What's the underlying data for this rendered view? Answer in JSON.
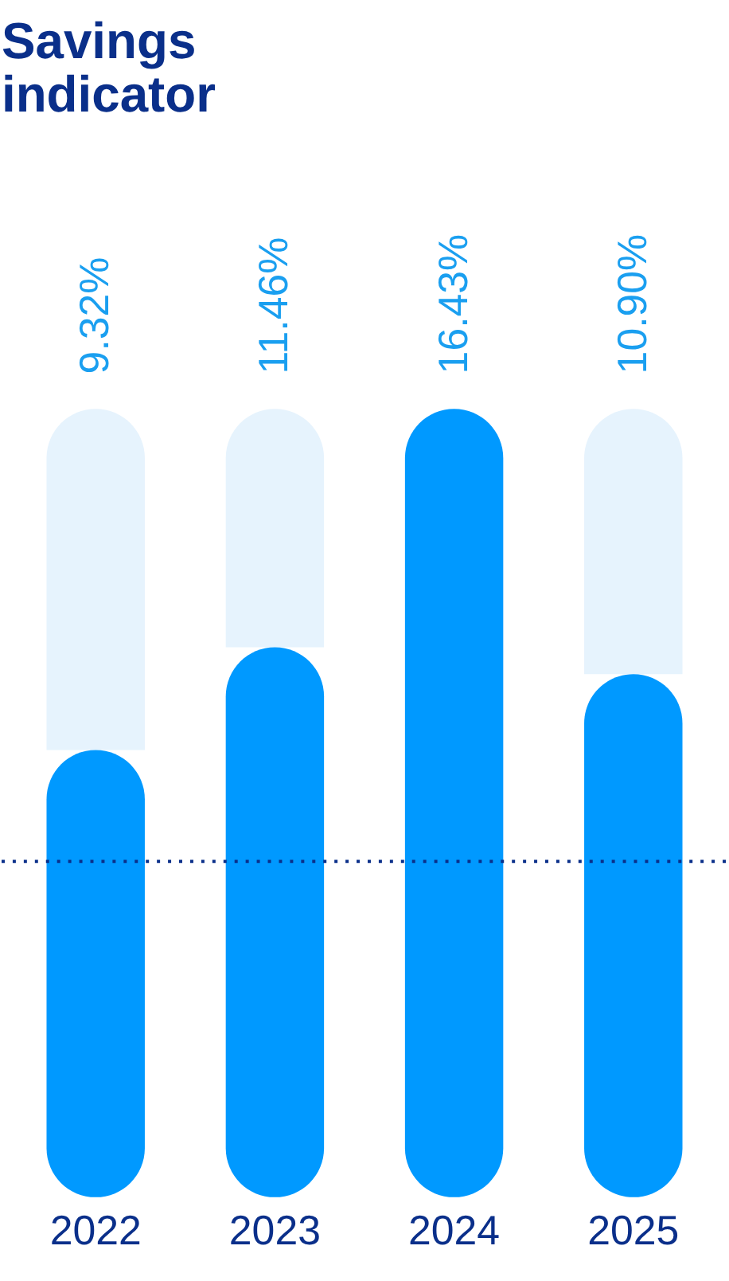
{
  "chart_data": {
    "type": "bar",
    "title": "Savings indicator",
    "categories": [
      "2022",
      "2023",
      "2024",
      "2025"
    ],
    "stacked": true,
    "series": [
      {
        "color": "#0099ff",
        "values": [
          9.32,
          11.46,
          16.43,
          10.9
        ],
        "value_labels": [
          "9.32%",
          "11.46%",
          "16.43%",
          "10.90%"
        ]
      },
      {
        "color": "#e6f3fd",
        "values": [
          7.11,
          4.97,
          0,
          5.53
        ]
      }
    ],
    "ref_lines": [
      {
        "axis": "y",
        "value": 7,
        "color": "#0a2f8a",
        "line_style": "dotted"
      }
    ],
    "tick_labels": "x"
  }
}
